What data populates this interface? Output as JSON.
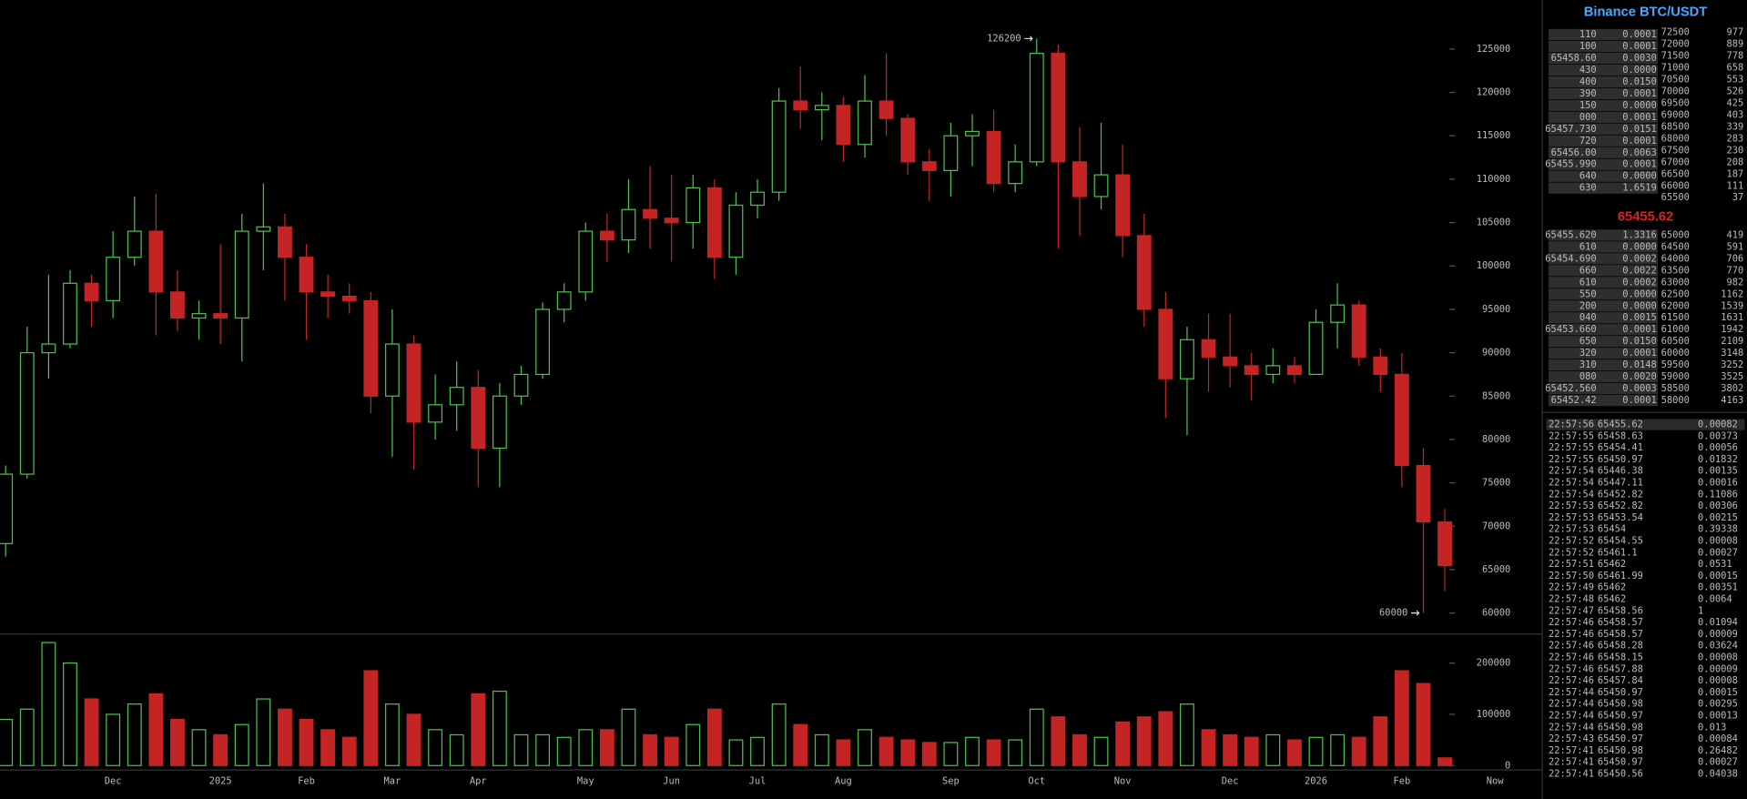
{
  "chart_data": {
    "type": "candlestick",
    "categories": [
      null,
      null,
      null,
      null,
      null,
      "Dec",
      null,
      null,
      null,
      null,
      "2025",
      null,
      null,
      null,
      "Feb",
      null,
      null,
      null,
      "Mar",
      null,
      null,
      null,
      "Apr",
      null,
      null,
      null,
      null,
      "May",
      null,
      null,
      null,
      "Jun",
      null,
      null,
      null,
      "Jul",
      null,
      null,
      null,
      "Aug",
      null,
      null,
      null,
      null,
      "Sep",
      null,
      null,
      null,
      "Oct",
      null,
      null,
      null,
      "Nov",
      null,
      null,
      null,
      null,
      "Dec",
      null,
      null,
      null,
      "2026",
      null,
      null,
      null,
      "Feb",
      null,
      null
    ],
    "open": [
      68000,
      76000,
      90000,
      91000,
      98000,
      96000,
      101000,
      104000,
      97000,
      94000,
      94500,
      94000,
      104000,
      104500,
      101000,
      97000,
      96500,
      96000,
      85000,
      91000,
      82000,
      84000,
      86000,
      79000,
      85000,
      87500,
      95000,
      97000,
      104000,
      103000,
      106500,
      105500,
      105000,
      109000,
      101000,
      107000,
      108500,
      119000,
      118000,
      118500,
      114000,
      119000,
      117000,
      112000,
      111000,
      115000,
      115500,
      109500,
      112000,
      124500,
      112000,
      108000,
      110500,
      103500,
      95000,
      87000,
      91500,
      89500,
      88500,
      87500,
      88500,
      87500,
      93500,
      95500,
      89500,
      87500,
      77000,
      70500
    ],
    "high": [
      77000,
      93000,
      99000,
      99500,
      99000,
      104000,
      108000,
      108300,
      99500,
      96000,
      102500,
      106000,
      109500,
      106000,
      102500,
      99000,
      98000,
      97000,
      95000,
      92000,
      87500,
      89000,
      88000,
      86500,
      88500,
      95800,
      98000,
      105000,
      106000,
      110000,
      111500,
      110500,
      110500,
      110000,
      108500,
      110000,
      120500,
      123000,
      120000,
      119500,
      122000,
      124500,
      117500,
      113500,
      116500,
      117500,
      118000,
      114000,
      126200,
      125500,
      116000,
      116500,
      114000,
      106000,
      97000,
      93000,
      94500,
      94500,
      90000,
      90500,
      89500,
      95000,
      98000,
      96000,
      90500,
      90000,
      79000,
      72000
    ],
    "low": [
      66500,
      75500,
      87000,
      90500,
      93000,
      94000,
      100000,
      92000,
      92500,
      91500,
      91000,
      89000,
      99500,
      96000,
      91500,
      94000,
      94500,
      83000,
      78000,
      76500,
      80000,
      81000,
      74500,
      74500,
      84000,
      87000,
      93500,
      96000,
      100500,
      101500,
      102000,
      100500,
      102000,
      98500,
      99000,
      105500,
      107500,
      115800,
      114500,
      112000,
      112500,
      115000,
      110500,
      107500,
      108000,
      111500,
      108500,
      108500,
      111500,
      102000,
      103500,
      106500,
      101000,
      93000,
      82500,
      80500,
      85500,
      86000,
      84500,
      86500,
      86500,
      87500,
      90500,
      88500,
      85500,
      74500,
      60000,
      62500
    ],
    "close": [
      76000,
      90000,
      91000,
      98000,
      96000,
      101000,
      104000,
      97000,
      94000,
      94500,
      94000,
      104000,
      104500,
      101000,
      97000,
      96500,
      96000,
      85000,
      91000,
      82000,
      84000,
      86000,
      79000,
      85000,
      87500,
      95000,
      97000,
      104000,
      103000,
      106500,
      105500,
      105000,
      109000,
      101000,
      107000,
      108500,
      119000,
      118000,
      118500,
      114000,
      119000,
      117000,
      112000,
      111000,
      115000,
      115500,
      109500,
      112000,
      124500,
      112000,
      108000,
      110500,
      103500,
      95000,
      87000,
      91500,
      89500,
      88500,
      87500,
      88500,
      87500,
      93500,
      95500,
      89500,
      87500,
      77000,
      70500,
      65455.62
    ],
    "volume": [
      90000,
      110000,
      240000,
      200000,
      130000,
      100000,
      120000,
      140000,
      90000,
      70000,
      60000,
      80000,
      130000,
      110000,
      90000,
      70000,
      55000,
      185000,
      120000,
      100000,
      70000,
      60000,
      140000,
      145000,
      60000,
      60000,
      55000,
      70000,
      70000,
      110000,
      60000,
      55000,
      80000,
      110000,
      50000,
      55000,
      120000,
      80000,
      60000,
      50000,
      70000,
      55000,
      50000,
      45000,
      45000,
      55000,
      50000,
      50000,
      110000,
      95000,
      60000,
      55000,
      85000,
      95000,
      105000,
      120000,
      70000,
      60000,
      55000,
      60000,
      50000,
      55000,
      60000,
      55000,
      95000,
      185000,
      160000,
      15000
    ],
    "up_color": "#4cc24c",
    "down_color": "#c42424",
    "ylim": [
      57700,
      130650
    ],
    "yticks": [
      60000,
      65000,
      70000,
      75000,
      80000,
      85000,
      90000,
      95000,
      100000,
      105000,
      110000,
      115000,
      120000,
      125000
    ],
    "volume_ylim": [
      0,
      250000
    ],
    "volume_yticks": [
      0,
      100000,
      200000
    ],
    "now_label": "Now"
  },
  "order_book": {
    "title": "Binance BTC/USDT",
    "last_price": "65455.62",
    "last_color": "#e02020",
    "asks": [
      [
        "110",
        "0.0001"
      ],
      [
        "100",
        "0.0001"
      ],
      [
        "65458.60",
        "0.0030"
      ],
      [
        "430",
        "0.0000"
      ],
      [
        "400",
        "0.0150"
      ],
      [
        "390",
        "0.0001"
      ],
      [
        "150",
        "0.0000"
      ],
      [
        "000",
        "0.0001"
      ],
      [
        "65457.730",
        "0.0151"
      ],
      [
        "720",
        "0.0001"
      ],
      [
        "65456.00",
        "0.0063"
      ],
      [
        "65455.990",
        "0.0001"
      ],
      [
        "640",
        "0.0000"
      ],
      [
        "630",
        "1.6519"
      ]
    ],
    "ask_levels": [
      [
        "72500",
        "977"
      ],
      [
        "72000",
        "889"
      ],
      [
        "71500",
        "778"
      ],
      [
        "71000",
        "658"
      ],
      [
        "70500",
        "553"
      ],
      [
        "70000",
        "526"
      ],
      [
        "69500",
        "425"
      ],
      [
        "69000",
        "403"
      ],
      [
        "68500",
        "339"
      ],
      [
        "68000",
        "283"
      ],
      [
        "67500",
        "230"
      ],
      [
        "67000",
        "208"
      ],
      [
        "66500",
        "187"
      ],
      [
        "66000",
        "111"
      ],
      [
        "65500",
        "37"
      ]
    ],
    "bids": [
      [
        "65455.620",
        "1.3316"
      ],
      [
        "610",
        "0.0000"
      ],
      [
        "65454.690",
        "0.0002"
      ],
      [
        "660",
        "0.0022"
      ],
      [
        "610",
        "0.0002"
      ],
      [
        "550",
        "0.0000"
      ],
      [
        "200",
        "0.0000"
      ],
      [
        "040",
        "0.0015"
      ],
      [
        "65453.660",
        "0.0001"
      ],
      [
        "650",
        "0.0150"
      ],
      [
        "320",
        "0.0001"
      ],
      [
        "310",
        "0.0148"
      ],
      [
        "080",
        "0.0020"
      ],
      [
        "65452.560",
        "0.0003"
      ],
      [
        "65452.42",
        "0.0001"
      ]
    ],
    "bid_levels": [
      [
        "65000",
        "419"
      ],
      [
        "64500",
        "591"
      ],
      [
        "64000",
        "706"
      ],
      [
        "63500",
        "770"
      ],
      [
        "63000",
        "982"
      ],
      [
        "62500",
        "1162"
      ],
      [
        "62000",
        "1539"
      ],
      [
        "61500",
        "1631"
      ],
      [
        "61000",
        "1942"
      ],
      [
        "60500",
        "2109"
      ],
      [
        "60000",
        "3148"
      ],
      [
        "59500",
        "3252"
      ],
      [
        "59000",
        "3525"
      ],
      [
        "58500",
        "3802"
      ],
      [
        "58000",
        "4163"
      ]
    ]
  },
  "trades": [
    {
      "time": "22:57:56",
      "price": "65455.62",
      "size": "0.00082",
      "color": "#e05050"
    },
    {
      "time": "22:57:55",
      "price": "65458.63",
      "size": "0.00373",
      "color": "#50d050"
    },
    {
      "time": "22:57:55",
      "price": "65454.41",
      "size": "0.00056",
      "color": "#e05050"
    },
    {
      "time": "22:57:55",
      "price": "65450.97",
      "size": "0.01832",
      "color": "#50d050"
    },
    {
      "time": "22:57:54",
      "price": "65446.38",
      "size": "0.00135",
      "color": "#e05050"
    },
    {
      "time": "22:57:54",
      "price": "65447.11",
      "size": "0.00016",
      "color": "#50d050"
    },
    {
      "time": "22:57:54",
      "price": "65452.82",
      "size": "0.11086",
      "color": "#50d050"
    },
    {
      "time": "22:57:53",
      "price": "65452.82",
      "size": "0.00306",
      "color": "#50d050"
    },
    {
      "time": "22:57:53",
      "price": "65453.54",
      "size": "0.00215",
      "color": "#e05050"
    },
    {
      "time": "22:57:53",
      "price": "65454",
      "size": "0.39338",
      "color": "#e05050"
    },
    {
      "time": "22:57:52",
      "price": "65454.55",
      "size": "0.00008",
      "color": "#50d050"
    },
    {
      "time": "22:57:52",
      "price": "65461.1",
      "size": "0.00027",
      "color": "#e05050"
    },
    {
      "time": "22:57:51",
      "price": "65462",
      "size": "0.0531",
      "color": "#50d050"
    },
    {
      "time": "22:57:50",
      "price": "65461.99",
      "size": "0.00015",
      "color": "#e05050"
    },
    {
      "time": "22:57:49",
      "price": "65462",
      "size": "0.00351",
      "color": "#50d050"
    },
    {
      "time": "22:57:48",
      "price": "65462",
      "size": "0.0064",
      "color": "#50d050"
    },
    {
      "time": "22:57:47",
      "price": "65458.56",
      "size": "1",
      "color": "#e05050"
    },
    {
      "time": "22:57:46",
      "price": "65458.57",
      "size": "0.01094",
      "color": "#50d050"
    },
    {
      "time": "22:57:46",
      "price": "65458.57",
      "size": "0.00009",
      "color": "#50d050"
    },
    {
      "time": "22:57:46",
      "price": "65458.28",
      "size": "0.03624",
      "color": "#e05050"
    },
    {
      "time": "22:57:46",
      "price": "65458.15",
      "size": "0.00008",
      "color": "#50d050"
    },
    {
      "time": "22:57:46",
      "price": "65457.88",
      "size": "0.00009",
      "color": "#e05050"
    },
    {
      "time": "22:57:46",
      "price": "65457.84",
      "size": "0.00008",
      "color": "#50d050"
    },
    {
      "time": "22:57:44",
      "price": "65450.97",
      "size": "0.00015",
      "color": "#e05050"
    },
    {
      "time": "22:57:44",
      "price": "65450.98",
      "size": "0.00295",
      "color": "#50d050"
    },
    {
      "time": "22:57:44",
      "price": "65450.97",
      "size": "0.00013",
      "color": "#e05050"
    },
    {
      "time": "22:57:44",
      "price": "65450.98",
      "size": "0.013",
      "color": "#50d050"
    },
    {
      "time": "22:57:43",
      "price": "65450.97",
      "size": "0.00084",
      "color": "#e05050"
    },
    {
      "time": "22:57:41",
      "price": "65450.98",
      "size": "0.26482",
      "color": "#50d050"
    },
    {
      "time": "22:57:41",
      "price": "65450.97",
      "size": "0.00027",
      "color": "#e05050"
    },
    {
      "time": "22:57:41",
      "price": "65450.56",
      "size": "0.04038",
      "color": "#50d050"
    }
  ]
}
